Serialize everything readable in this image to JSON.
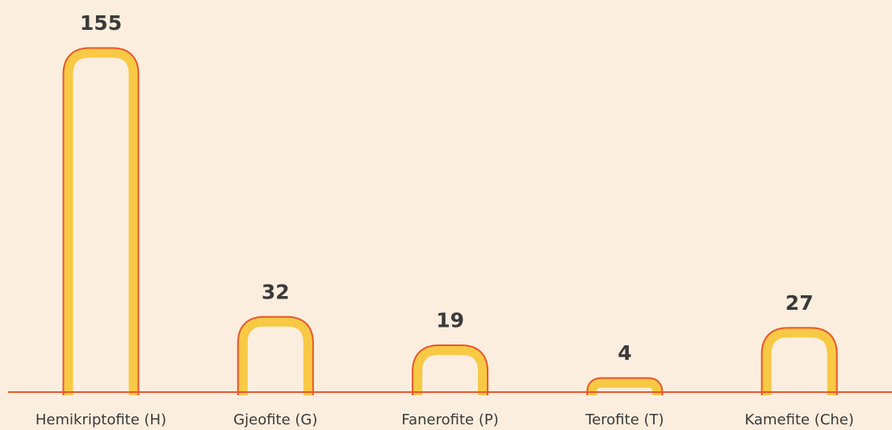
{
  "chart_data": {
    "type": "bar",
    "categories": [
      "Hemikriptofite (H)",
      "Gjeofite (G)",
      "Fanerofite (P)",
      "Terofite (T)",
      "Kamefite (Che)"
    ],
    "values": [
      155,
      32,
      19,
      4,
      27
    ],
    "color": "#f7c944",
    "edge_color": "#e9562c",
    "background": "#fbeede"
  }
}
